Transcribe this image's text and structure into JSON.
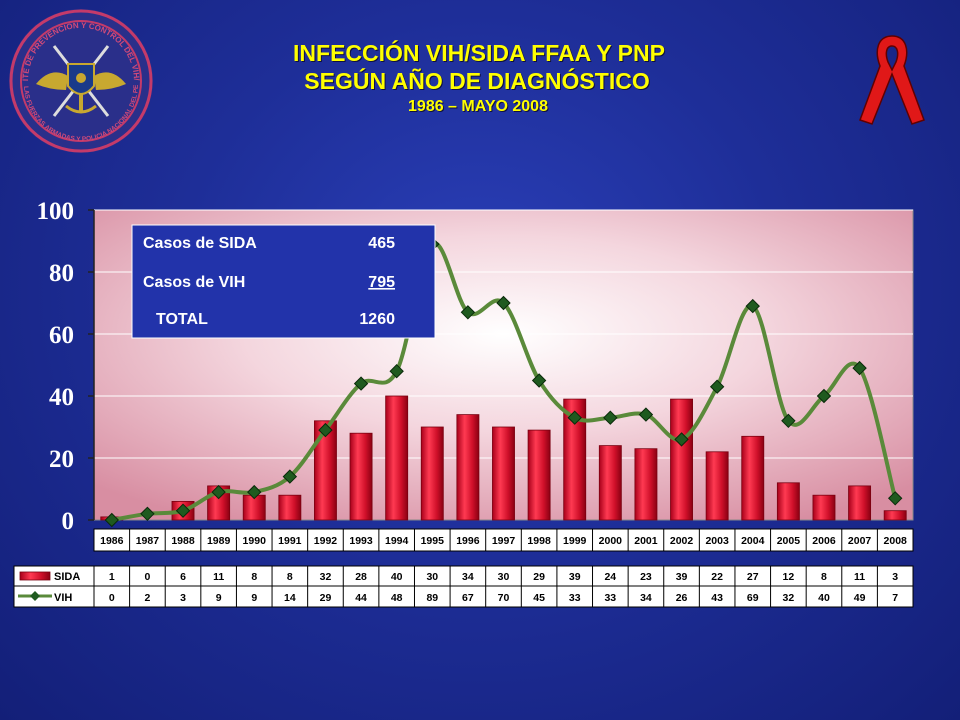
{
  "header": {
    "title_line1": "INFECCIÓN VIH/SIDA FFAA Y PNP",
    "title_line2": "SEGÚN AÑO DE DIAGNÓSTICO",
    "subtitle": "1986 – MAYO 2008"
  },
  "logo": {
    "top_text": "COMITE DE PREVENCION Y CONTROL DEL VIH/SIDA",
    "bottom_text": "DE LAS FUERZAS ARMADAS Y POLICIA NACIONAL DEL PERU"
  },
  "summary_box": {
    "rows": [
      {
        "label": "Casos de SIDA",
        "value": "465"
      },
      {
        "label": "Casos de VIH",
        "value": "795"
      },
      {
        "label": "TOTAL",
        "value": "1260"
      }
    ]
  },
  "colors": {
    "sida_bar": "#d0102a",
    "vih_line": "#5a8a3a",
    "vih_marker": "#1f5a1f",
    "title": "#ffff00",
    "summary_box_bg": "#2233aa"
  },
  "chart_data": {
    "type": "bar",
    "categories": [
      "1986",
      "1987",
      "1988",
      "1989",
      "1990",
      "1991",
      "1992",
      "1993",
      "1994",
      "1995",
      "1996",
      "1997",
      "1998",
      "1999",
      "2000",
      "2001",
      "2002",
      "2003",
      "2004",
      "2005",
      "2006",
      "2007",
      "2008"
    ],
    "series": [
      {
        "name": "SIDA",
        "kind": "bar",
        "values": [
          1,
          0,
          6,
          11,
          8,
          8,
          32,
          28,
          40,
          30,
          34,
          30,
          29,
          39,
          24,
          23,
          39,
          22,
          27,
          12,
          8,
          11,
          3
        ]
      },
      {
        "name": "VIH",
        "kind": "line",
        "values": [
          0,
          2,
          3,
          9,
          9,
          14,
          29,
          44,
          48,
          89,
          67,
          70,
          45,
          33,
          33,
          34,
          26,
          43,
          69,
          32,
          40,
          49,
          7
        ]
      }
    ],
    "yticks": [
      0,
      20,
      40,
      60,
      80,
      100
    ],
    "ylim": [
      0,
      100
    ],
    "grid": true,
    "legend": "data-table"
  }
}
